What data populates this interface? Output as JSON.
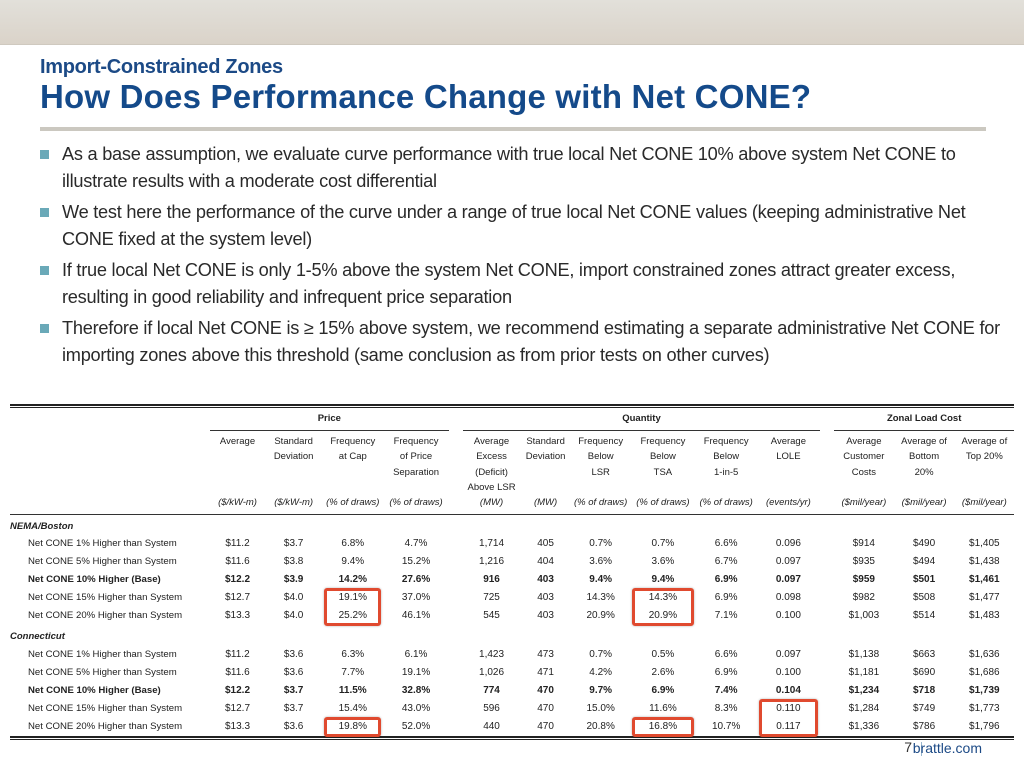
{
  "header": {
    "subtitle": "Import-Constrained Zones",
    "title": "How Does Performance Change with Net CONE?"
  },
  "bullets": [
    "As a base assumption, we evaluate curve performance with true local Net CONE 10% above system Net CONE to illustrate results with a moderate cost differential",
    "We test here the performance of the curve under a range of true local Net CONE values (keeping administrative Net CONE fixed at the system level)",
    "If true local Net CONE is only 1-5% above the system Net CONE, import constrained zones attract greater excess, resulting in good reliability and infrequent price separation",
    "Therefore if local Net CONE is ≥ 15% above system, we recommend estimating a separate administrative Net CONE for importing zones above this threshold (same conclusion as from prior tests on other curves)"
  ],
  "table": {
    "groups": [
      "Price",
      "Quantity",
      "Zonal Load Cost"
    ],
    "columns": [
      {
        "header": [
          "Average"
        ],
        "unit": "($/kW-m)"
      },
      {
        "header": [
          "Standard",
          "Deviation"
        ],
        "unit": "($/kW-m)"
      },
      {
        "header": [
          "Frequency",
          "at Cap"
        ],
        "unit": "(% of draws)"
      },
      {
        "header": [
          "Frequency",
          "of Price",
          "Separation"
        ],
        "unit": "(% of draws)"
      },
      {
        "header": [
          "Average",
          "Excess",
          "(Deficit)",
          "Above LSR"
        ],
        "unit": "(MW)"
      },
      {
        "header": [
          "Standard",
          "Deviation"
        ],
        "unit": "(MW)"
      },
      {
        "header": [
          "Frequency",
          "Below",
          "LSR"
        ],
        "unit": "(% of draws)"
      },
      {
        "header": [
          "Frequency",
          "Below",
          "TSA"
        ],
        "unit": "(% of draws)"
      },
      {
        "header": [
          "Frequency",
          "Below",
          "1-in-5"
        ],
        "unit": "(% of draws)"
      },
      {
        "header": [
          "Average",
          "LOLE"
        ],
        "unit": "(events/yr)"
      },
      {
        "header": [
          "Average",
          "Customer",
          "Costs"
        ],
        "unit": "($mil/year)"
      },
      {
        "header": [
          "Average of",
          "Bottom",
          "20%"
        ],
        "unit": "($mil/year)"
      },
      {
        "header": [
          "Average of",
          "Top 20%"
        ],
        "unit": "($mil/year)"
      }
    ],
    "sections": [
      {
        "name": "NEMA/Boston",
        "rows": [
          {
            "label": "Net CONE 1% Higher than System",
            "base": false,
            "values": [
              "$11.2",
              "$3.7",
              "6.8%",
              "4.7%",
              "1,714",
              "405",
              "0.7%",
              "0.7%",
              "6.6%",
              "0.096",
              "$914",
              "$490",
              "$1,405"
            ]
          },
          {
            "label": "Net CONE 5% Higher than System",
            "base": false,
            "values": [
              "$11.6",
              "$3.8",
              "9.4%",
              "15.2%",
              "1,216",
              "404",
              "3.6%",
              "3.6%",
              "6.7%",
              "0.097",
              "$935",
              "$494",
              "$1,438"
            ]
          },
          {
            "label": "Net CONE 10% Higher (Base)",
            "base": true,
            "values": [
              "$12.2",
              "$3.9",
              "14.2%",
              "27.6%",
              "916",
              "403",
              "9.4%",
              "9.4%",
              "6.9%",
              "0.097",
              "$959",
              "$501",
              "$1,461"
            ]
          },
          {
            "label": "Net CONE 15% Higher than System",
            "base": false,
            "values": [
              "$12.7",
              "$4.0",
              "19.1%",
              "37.0%",
              "725",
              "403",
              "14.3%",
              "14.3%",
              "6.9%",
              "0.098",
              "$982",
              "$508",
              "$1,477"
            ]
          },
          {
            "label": "Net CONE 20% Higher than System",
            "base": false,
            "values": [
              "$13.3",
              "$4.0",
              "25.2%",
              "46.1%",
              "545",
              "403",
              "20.9%",
              "20.9%",
              "7.1%",
              "0.100",
              "$1,003",
              "$514",
              "$1,483"
            ]
          }
        ]
      },
      {
        "name": "Connecticut",
        "rows": [
          {
            "label": "Net CONE 1% Higher than System",
            "base": false,
            "values": [
              "$11.2",
              "$3.6",
              "6.3%",
              "6.1%",
              "1,423",
              "473",
              "0.7%",
              "0.5%",
              "6.6%",
              "0.097",
              "$1,138",
              "$663",
              "$1,636"
            ]
          },
          {
            "label": "Net CONE 5% Higher than System",
            "base": false,
            "values": [
              "$11.6",
              "$3.6",
              "7.7%",
              "19.1%",
              "1,026",
              "471",
              "4.2%",
              "2.6%",
              "6.9%",
              "0.100",
              "$1,181",
              "$690",
              "$1,686"
            ]
          },
          {
            "label": "Net CONE 10% Higher (Base)",
            "base": true,
            "values": [
              "$12.2",
              "$3.7",
              "11.5%",
              "32.8%",
              "774",
              "470",
              "9.7%",
              "6.9%",
              "7.4%",
              "0.104",
              "$1,234",
              "$718",
              "$1,739"
            ]
          },
          {
            "label": "Net CONE 15% Higher than System",
            "base": false,
            "values": [
              "$12.7",
              "$3.7",
              "15.4%",
              "43.0%",
              "596",
              "470",
              "15.0%",
              "11.6%",
              "8.3%",
              "0.110",
              "$1,284",
              "$749",
              "$1,773"
            ]
          },
          {
            "label": "Net CONE 20% Higher than System",
            "base": false,
            "values": [
              "$13.3",
              "$3.6",
              "19.8%",
              "52.0%",
              "440",
              "470",
              "20.8%",
              "16.8%",
              "10.7%",
              "0.117",
              "$1,336",
              "$786",
              "$1,796"
            ]
          }
        ]
      }
    ],
    "highlights": [
      {
        "section": 0,
        "rows": [
          3,
          4
        ],
        "column": 2
      },
      {
        "section": 0,
        "rows": [
          3,
          4
        ],
        "column": 7
      },
      {
        "section": 1,
        "rows": [
          4
        ],
        "column": 2
      },
      {
        "section": 1,
        "rows": [
          4
        ],
        "column": 7
      },
      {
        "section": 1,
        "rows": [
          3,
          4
        ],
        "column": 9
      }
    ]
  },
  "colors": {
    "title": "#144a8a",
    "bullet": "#6aa9b8",
    "highlight": "#e04a2f"
  },
  "footer": {
    "page_number": "7",
    "site": "brattle.com"
  }
}
